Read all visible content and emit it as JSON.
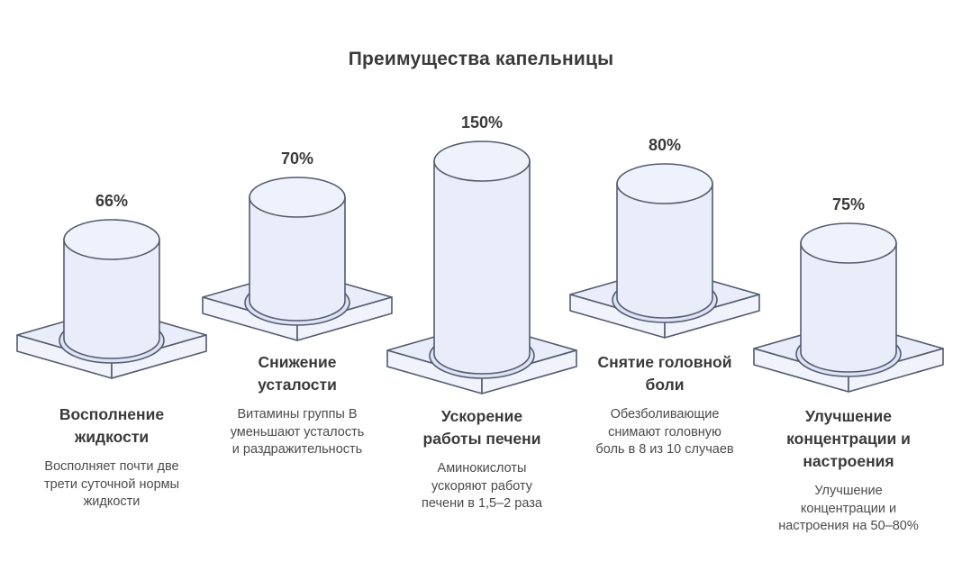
{
  "title": "Преимущества капельницы",
  "colors": {
    "cylinder_fill": "#e9edf9",
    "cylinder_top_fill": "#eef2fc",
    "platform_top_fill": "#e9edf9",
    "platform_side_fill": "#f0f3fb",
    "shadow_fill": "#dde3f4",
    "stroke": "#535b6e",
    "title_color": "#3a3a3a",
    "heading_color": "#3a3a3a",
    "description_color": "#4b4b4b"
  },
  "chart_data": {
    "type": "bar",
    "variant": "isometric-cylinder-pictogram",
    "title": "Преимущества капельницы",
    "categories": [
      "Восполнение жидкости",
      "Снижение усталости",
      "Ускорение работы печени",
      "Снятие головной боли",
      "Улучшение концентрации и настроения"
    ],
    "values": [
      66,
      70,
      150,
      80,
      75
    ],
    "value_labels": [
      "66%",
      "70%",
      "150%",
      "80%",
      "75%"
    ],
    "descriptions": [
      "Восполняет почти две трети суточной нормы жидкости",
      "Витамины группы В уменьшают усталость и раздражительность",
      "Аминокислоты ускоряют работу печени в 1,5–2 раза",
      "Обезболивающие снимают головную боль в 8 из 10 случаев",
      "Улучшение концентрации и настроения на 50–80%"
    ],
    "unit": "%",
    "legend": "none",
    "grid": false,
    "layout": "5 columns, staggered baselines (columns 1,3,5 low; 2,4 high)"
  },
  "columns": [
    {
      "value_label": "66%",
      "heading": "Восполнение\nжидкости",
      "description": "Восполняет почти две\nтрети суточной нормы\nжидкости"
    },
    {
      "value_label": "70%",
      "heading": "Снижение\nусталости",
      "description": "Витамины группы В\nуменьшают усталость\nи раздражительность"
    },
    {
      "value_label": "150%",
      "heading": "Ускорение\nработы печени",
      "description": "Аминокислоты\nускоряют работу\nпечени в 1,5–2 раза"
    },
    {
      "value_label": "80%",
      "heading": "Снятие головной\nболи",
      "description": "Обезболивающие\nснимают головную\nболь в 8 из 10 случаев"
    },
    {
      "value_label": "75%",
      "heading": "Улучшение\nконцентрации и\nнастроения",
      "description": "Улучшение\nконцентрации и\nнастроения на 50–80%"
    }
  ]
}
